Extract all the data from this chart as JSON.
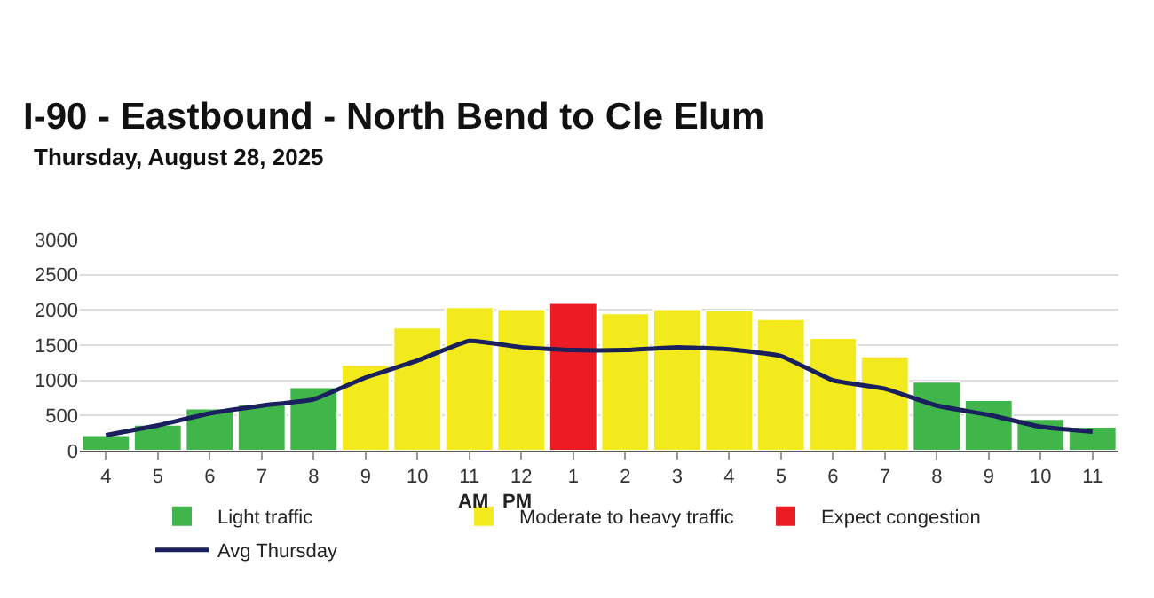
{
  "chart_data": {
    "type": "bar",
    "title": "I-90 - Eastbound - North Bend to Cle Elum",
    "subtitle": "Thursday, August 28, 2025",
    "categories": [
      "4",
      "5",
      "6",
      "7",
      "8",
      "9",
      "10",
      "11",
      "12",
      "1",
      "2",
      "3",
      "4",
      "5",
      "6",
      "7",
      "8",
      "9",
      "10",
      "11"
    ],
    "series": [
      {
        "name": "Light traffic",
        "color": "#3fb54a",
        "values": [
          220,
          370,
          600,
          660,
          900,
          null,
          null,
          null,
          null,
          null,
          null,
          null,
          null,
          null,
          null,
          null,
          980,
          720,
          450,
          340
        ]
      },
      {
        "name": "Moderate to heavy traffic",
        "color": "#f2ea1c",
        "values": [
          null,
          null,
          null,
          null,
          null,
          1220,
          1750,
          2040,
          2010,
          null,
          1950,
          2010,
          1990,
          1870,
          1600,
          1340,
          null,
          null,
          null,
          null
        ]
      },
      {
        "name": "Expect congestion",
        "color": "#ec1c24",
        "values": [
          null,
          null,
          null,
          null,
          null,
          null,
          null,
          null,
          null,
          2100,
          null,
          null,
          null,
          null,
          null,
          null,
          null,
          null,
          null,
          null
        ]
      },
      {
        "name": "Avg Thursday",
        "type": "line",
        "color": "#1a1f5e",
        "values": [
          220,
          360,
          530,
          640,
          730,
          1040,
          1280,
          1560,
          1470,
          1430,
          1430,
          1470,
          1440,
          1345,
          1000,
          880,
          640,
          510,
          340,
          270
        ]
      }
    ],
    "annotations": [
      "AM",
      "PM"
    ],
    "ylim": [
      0,
      3000
    ],
    "yticks": [
      0,
      500,
      1000,
      1500,
      2000,
      2500,
      3000
    ],
    "grid": "y",
    "legend": "bottom",
    "marker": "none"
  }
}
